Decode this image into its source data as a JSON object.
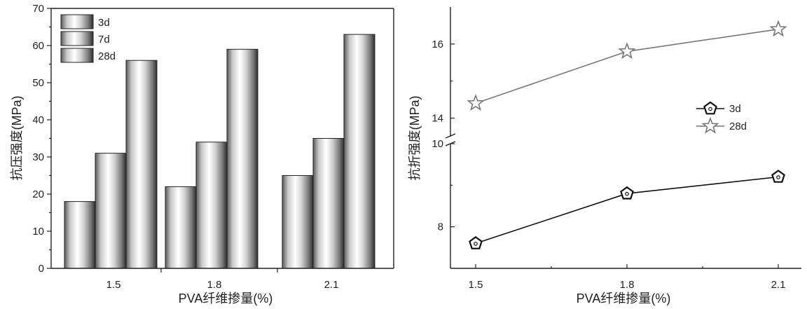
{
  "colors": {
    "axis": "#222222",
    "line_3d": "#111111",
    "line_28d": "#777777",
    "background": "#ffffff"
  },
  "chart_data": [
    {
      "type": "bar",
      "categories": [
        "1.5",
        "1.8",
        "2.1"
      ],
      "series": [
        {
          "name": "3d",
          "values": [
            18,
            22,
            25
          ]
        },
        {
          "name": "7d",
          "values": [
            31,
            34,
            35
          ]
        },
        {
          "name": "28d",
          "values": [
            56,
            59,
            63
          ]
        }
      ],
      "title": "",
      "xlabel": "PVA纤维掺量(%)",
      "ylabel": "抗压强度(MPa)",
      "ylim": [
        0,
        70
      ],
      "yticks": [
        "0",
        "10",
        "20",
        "30",
        "40",
        "50",
        "60",
        "70"
      ],
      "grid": false,
      "legend": "top-left"
    },
    {
      "type": "line",
      "categories": [
        "1.5",
        "1.8",
        "2.1"
      ],
      "series": [
        {
          "name": "3d",
          "values": [
            7.6,
            8.8,
            9.2
          ],
          "marker": "pentagon"
        },
        {
          "name": "28d",
          "values": [
            14.4,
            15.8,
            16.4
          ],
          "marker": "star"
        }
      ],
      "title": "",
      "xlabel": "PVA纤维掺量(%)",
      "ylabel": "抗折强度(MPa)",
      "broken_axis": true,
      "ylim_lower": [
        7,
        10
      ],
      "ylim_upper": [
        13.5,
        17
      ],
      "yticks_lower": [
        "8",
        "10"
      ],
      "yticks_upper": [
        "14",
        "16"
      ],
      "grid": false,
      "legend": "right"
    }
  ]
}
